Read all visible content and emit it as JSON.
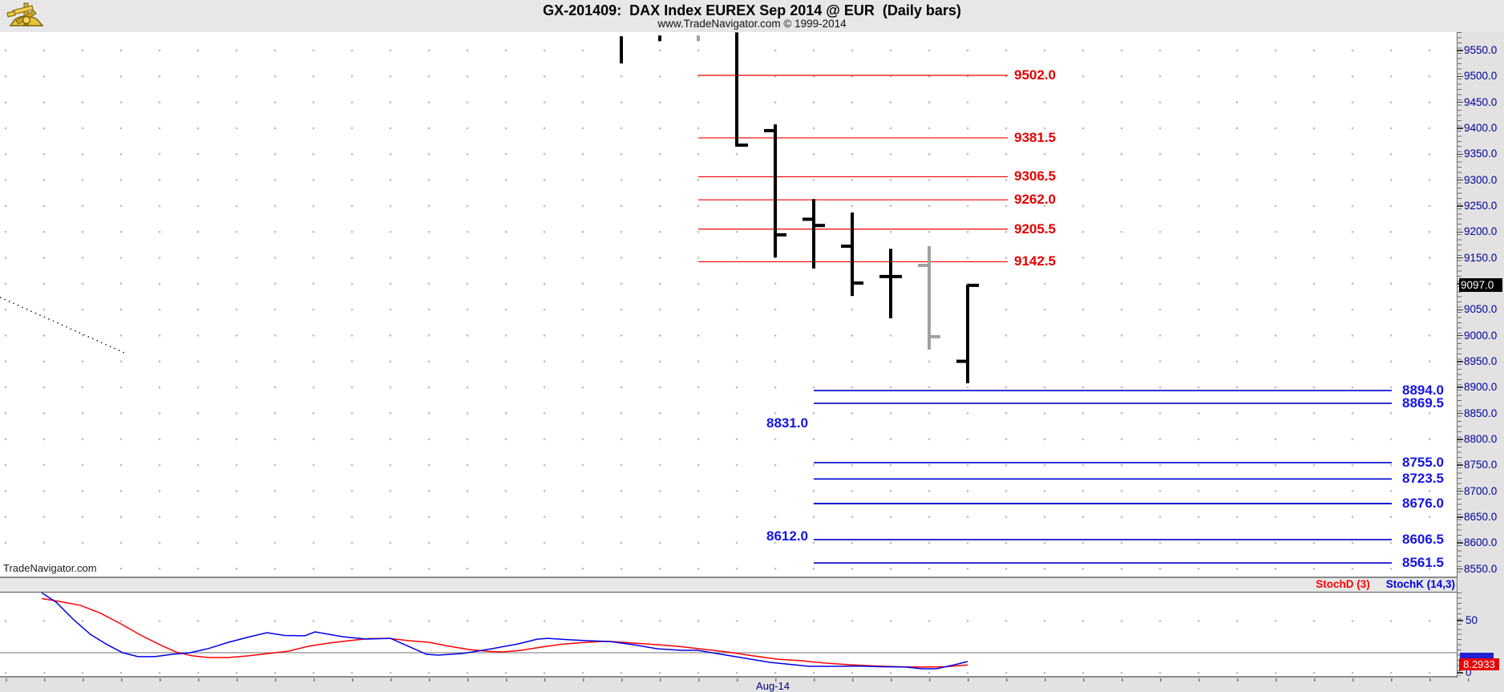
{
  "header": {
    "title": "GX-201409:  DAX Index EUREX Sep 2014 @ EUR  (Daily bars)",
    "subtitle": "www.TradeNavigator.com © 1999-2014",
    "logo": "gold-sextant-logo"
  },
  "watermark": "TradeNavigator.com",
  "colors": {
    "resistance_line": "#f00000",
    "resistance_label": "#e60000",
    "support_line": "#0000cd",
    "support_label": "#1414e6",
    "axis_label": "#000099",
    "bar_black": "#000000",
    "bar_gray": "#a0a0a0",
    "stoch_d": "#ff0000",
    "stoch_k": "#0000e6",
    "price_badge_bg": "#000000",
    "stoch_badge_bg": "#ea0000"
  },
  "price_axis": {
    "tick_labels": [
      "9550.0",
      "9500.0",
      "9450.0",
      "9400.0",
      "9350.0",
      "9300.0",
      "9250.0",
      "9200.0",
      "9150.0",
      "9100.0",
      "9050.0",
      "9000.0",
      "8950.0",
      "8900.0",
      "8850.0",
      "8800.0",
      "8750.0",
      "8700.0",
      "8650.0",
      "8600.0",
      "8550.0"
    ],
    "top_price": 9550,
    "step": 50,
    "current_price_badge": "9097.0"
  },
  "date_axis": {
    "labels": [
      {
        "text": "Aug-14",
        "x": 964
      }
    ]
  },
  "stoch_panel": {
    "legend": [
      {
        "label": "StochD (3)",
        "color": "#ff0000"
      },
      {
        "label": "StochK (14,3)",
        "color": "#0000e6"
      }
    ],
    "axis_labels": [
      {
        "text": "50",
        "value": 50
      },
      {
        "text": "0",
        "value": 0
      }
    ],
    "value_badge": "8.2933"
  },
  "chart_data": [
    {
      "type": "ohlc-bar",
      "title": "GX-201409: DAX Index EUREX Sep 2014 @ EUR (Daily bars)",
      "timeframe": "Daily bars",
      "ylim": [
        8550,
        9590
      ],
      "grid": "dotted",
      "bars": [
        {
          "x": 775,
          "high": 9577.5,
          "low": 9525.0,
          "open": null,
          "close": null,
          "color": "black",
          "clipped_top": true
        },
        {
          "x": 823,
          "high": 9579.0,
          "low": 9568.0,
          "open": null,
          "close": null,
          "color": "black",
          "clipped_top": true
        },
        {
          "x": 871,
          "high": 9579.0,
          "low": 9568.0,
          "open": null,
          "close": null,
          "color": "gray",
          "clipped_top": true
        },
        {
          "x": 919,
          "high": 9585.0,
          "low": 9364.5,
          "open": null,
          "close": 9367.5,
          "color": "black",
          "clipped_top": true
        },
        {
          "x": 967,
          "high": 9407.5,
          "low": 9151.0,
          "open": 9395.5,
          "close": 9194.5,
          "color": "black"
        },
        {
          "x": 1015,
          "high": 9263.5,
          "low": 9129.5,
          "open": 9224.5,
          "close": 9212.5,
          "color": "black"
        },
        {
          "x": 1063,
          "high": 9237.5,
          "low": 9076.5,
          "open": 9172.5,
          "close": 9101.5,
          "color": "black"
        },
        {
          "x": 1111,
          "high": 9167.5,
          "low": 9033.5,
          "open": 9114.0,
          "close": 9114.0,
          "color": "black"
        },
        {
          "x": 1159,
          "high": 9172.5,
          "low": 8973.0,
          "open": 9135.5,
          "close": 8998.0,
          "color": "gray"
        },
        {
          "x": 1207,
          "high": 9098.5,
          "low": 8908.0,
          "open": 8950.5,
          "close": 9097.0,
          "color": "black"
        }
      ],
      "resistance_levels": [
        {
          "price": 9502.0,
          "label": "9502.0"
        },
        {
          "price": 9381.5,
          "label": "9381.5"
        },
        {
          "price": 9306.5,
          "label": "9306.5"
        },
        {
          "price": 9262.0,
          "label": "9262.0"
        },
        {
          "price": 9205.5,
          "label": "9205.5"
        },
        {
          "price": 9142.5,
          "label": "9142.5"
        }
      ],
      "support_levels": [
        {
          "price": 8894.0,
          "label": "8894.0",
          "label_side": "right"
        },
        {
          "price": 8869.5,
          "label": "8869.5",
          "label_side": "right"
        },
        {
          "price": 8831.0,
          "label": "8831.0",
          "label_side": "left"
        },
        {
          "price": 8755.0,
          "label": "8755.0",
          "label_side": "right"
        },
        {
          "price": 8723.5,
          "label": "8723.5",
          "label_side": "right"
        },
        {
          "price": 8676.0,
          "label": "8676.0",
          "label_side": "left_line_only"
        },
        {
          "price": 8676.0,
          "label": "8676.0",
          "label_side": "right"
        },
        {
          "price": 8612.0,
          "label": "8612.0",
          "label_side": "left"
        },
        {
          "price": 8606.5,
          "label": "8606.5",
          "label_side": "right"
        },
        {
          "price": 8561.5,
          "label": "8561.5",
          "label_side": "right"
        }
      ],
      "trendline": {
        "x1": 0,
        "price1": 9074,
        "x2": 155,
        "price2": 8967,
        "style": "dotted",
        "color": "#000000"
      }
    },
    {
      "type": "line",
      "name": "Stochastics",
      "ylim": [
        0,
        100
      ],
      "level_line": 20,
      "yticks": [
        50,
        0
      ],
      "series": [
        {
          "name": "StochD (3)",
          "color": "#ff0000",
          "points": [
            [
              52,
              72
            ],
            [
              75,
              69
            ],
            [
              100,
              65.5
            ],
            [
              125,
              58
            ],
            [
              150,
              48
            ],
            [
              175,
              37
            ],
            [
              200,
              27.5
            ],
            [
              220,
              20.5
            ],
            [
              240,
              17
            ],
            [
              260,
              15.4
            ],
            [
              285,
              15.4
            ],
            [
              310,
              17
            ],
            [
              335,
              19.2
            ],
            [
              360,
              21.5
            ],
            [
              385,
              26.2
            ],
            [
              410,
              29.2
            ],
            [
              435,
              31.5
            ],
            [
              460,
              33.5
            ],
            [
              485,
              33.8
            ],
            [
              510,
              31.5
            ],
            [
              535,
              30
            ],
            [
              560,
              26.2
            ],
            [
              585,
              23.1
            ],
            [
              610,
              21.2
            ],
            [
              628,
              20.8
            ],
            [
              650,
              22.3
            ],
            [
              675,
              25.4
            ],
            [
              700,
              28.1
            ],
            [
              725,
              29.6
            ],
            [
              750,
              30.8
            ],
            [
              763,
              30.8
            ],
            [
              790,
              29.2
            ],
            [
              820,
              27.7
            ],
            [
              850,
              25.8
            ],
            [
              880,
              23.1
            ],
            [
              910,
              20.4
            ],
            [
              940,
              16.9
            ],
            [
              970,
              13.8
            ],
            [
              1000,
              12.3
            ],
            [
              1030,
              10
            ],
            [
              1060,
              8.5
            ],
            [
              1090,
              7.3
            ],
            [
              1120,
              6.5
            ],
            [
              1150,
              6.2
            ],
            [
              1180,
              6.5
            ],
            [
              1207,
              8.3
            ]
          ]
        },
        {
          "name": "StochK (14,3)",
          "color": "#0000e6",
          "points": [
            [
              52,
              77.5
            ],
            [
              70,
              68.5
            ],
            [
              92,
              51.5
            ],
            [
              113,
              37.5
            ],
            [
              133,
              28
            ],
            [
              153,
              20
            ],
            [
              172,
              16.2
            ],
            [
              193,
              16.2
            ],
            [
              215,
              18.5
            ],
            [
              237,
              20
            ],
            [
              260,
              24
            ],
            [
              285,
              30
            ],
            [
              310,
              35
            ],
            [
              333,
              39.2
            ],
            [
              355,
              36.5
            ],
            [
              380,
              36.2
            ],
            [
              393,
              40
            ],
            [
              427,
              35.4
            ],
            [
              457,
              33.1
            ],
            [
              487,
              33.8
            ],
            [
              510,
              26
            ],
            [
              532,
              18.5
            ],
            [
              547,
              17.7
            ],
            [
              577,
              19.2
            ],
            [
              613,
              23.8
            ],
            [
              647,
              28.5
            ],
            [
              670,
              33
            ],
            [
              683,
              33.8
            ],
            [
              713,
              32.3
            ],
            [
              733,
              31.5
            ],
            [
              760,
              30.8
            ],
            [
              790,
              27.7
            ],
            [
              820,
              23.8
            ],
            [
              850,
              22.3
            ],
            [
              870,
              22.3
            ],
            [
              900,
              18.5
            ],
            [
              930,
              14.6
            ],
            [
              960,
              10.8
            ],
            [
              990,
              8.5
            ],
            [
              1010,
              6.9
            ],
            [
              1040,
              6.9
            ],
            [
              1070,
              7.2
            ],
            [
              1100,
              6.5
            ],
            [
              1130,
              6.2
            ],
            [
              1150,
              4.6
            ],
            [
              1168,
              4.6
            ],
            [
              1182,
              6.9
            ],
            [
              1195,
              9.2
            ],
            [
              1207,
              11.5
            ]
          ]
        }
      ],
      "last_value_badge": "8.2933"
    }
  ]
}
